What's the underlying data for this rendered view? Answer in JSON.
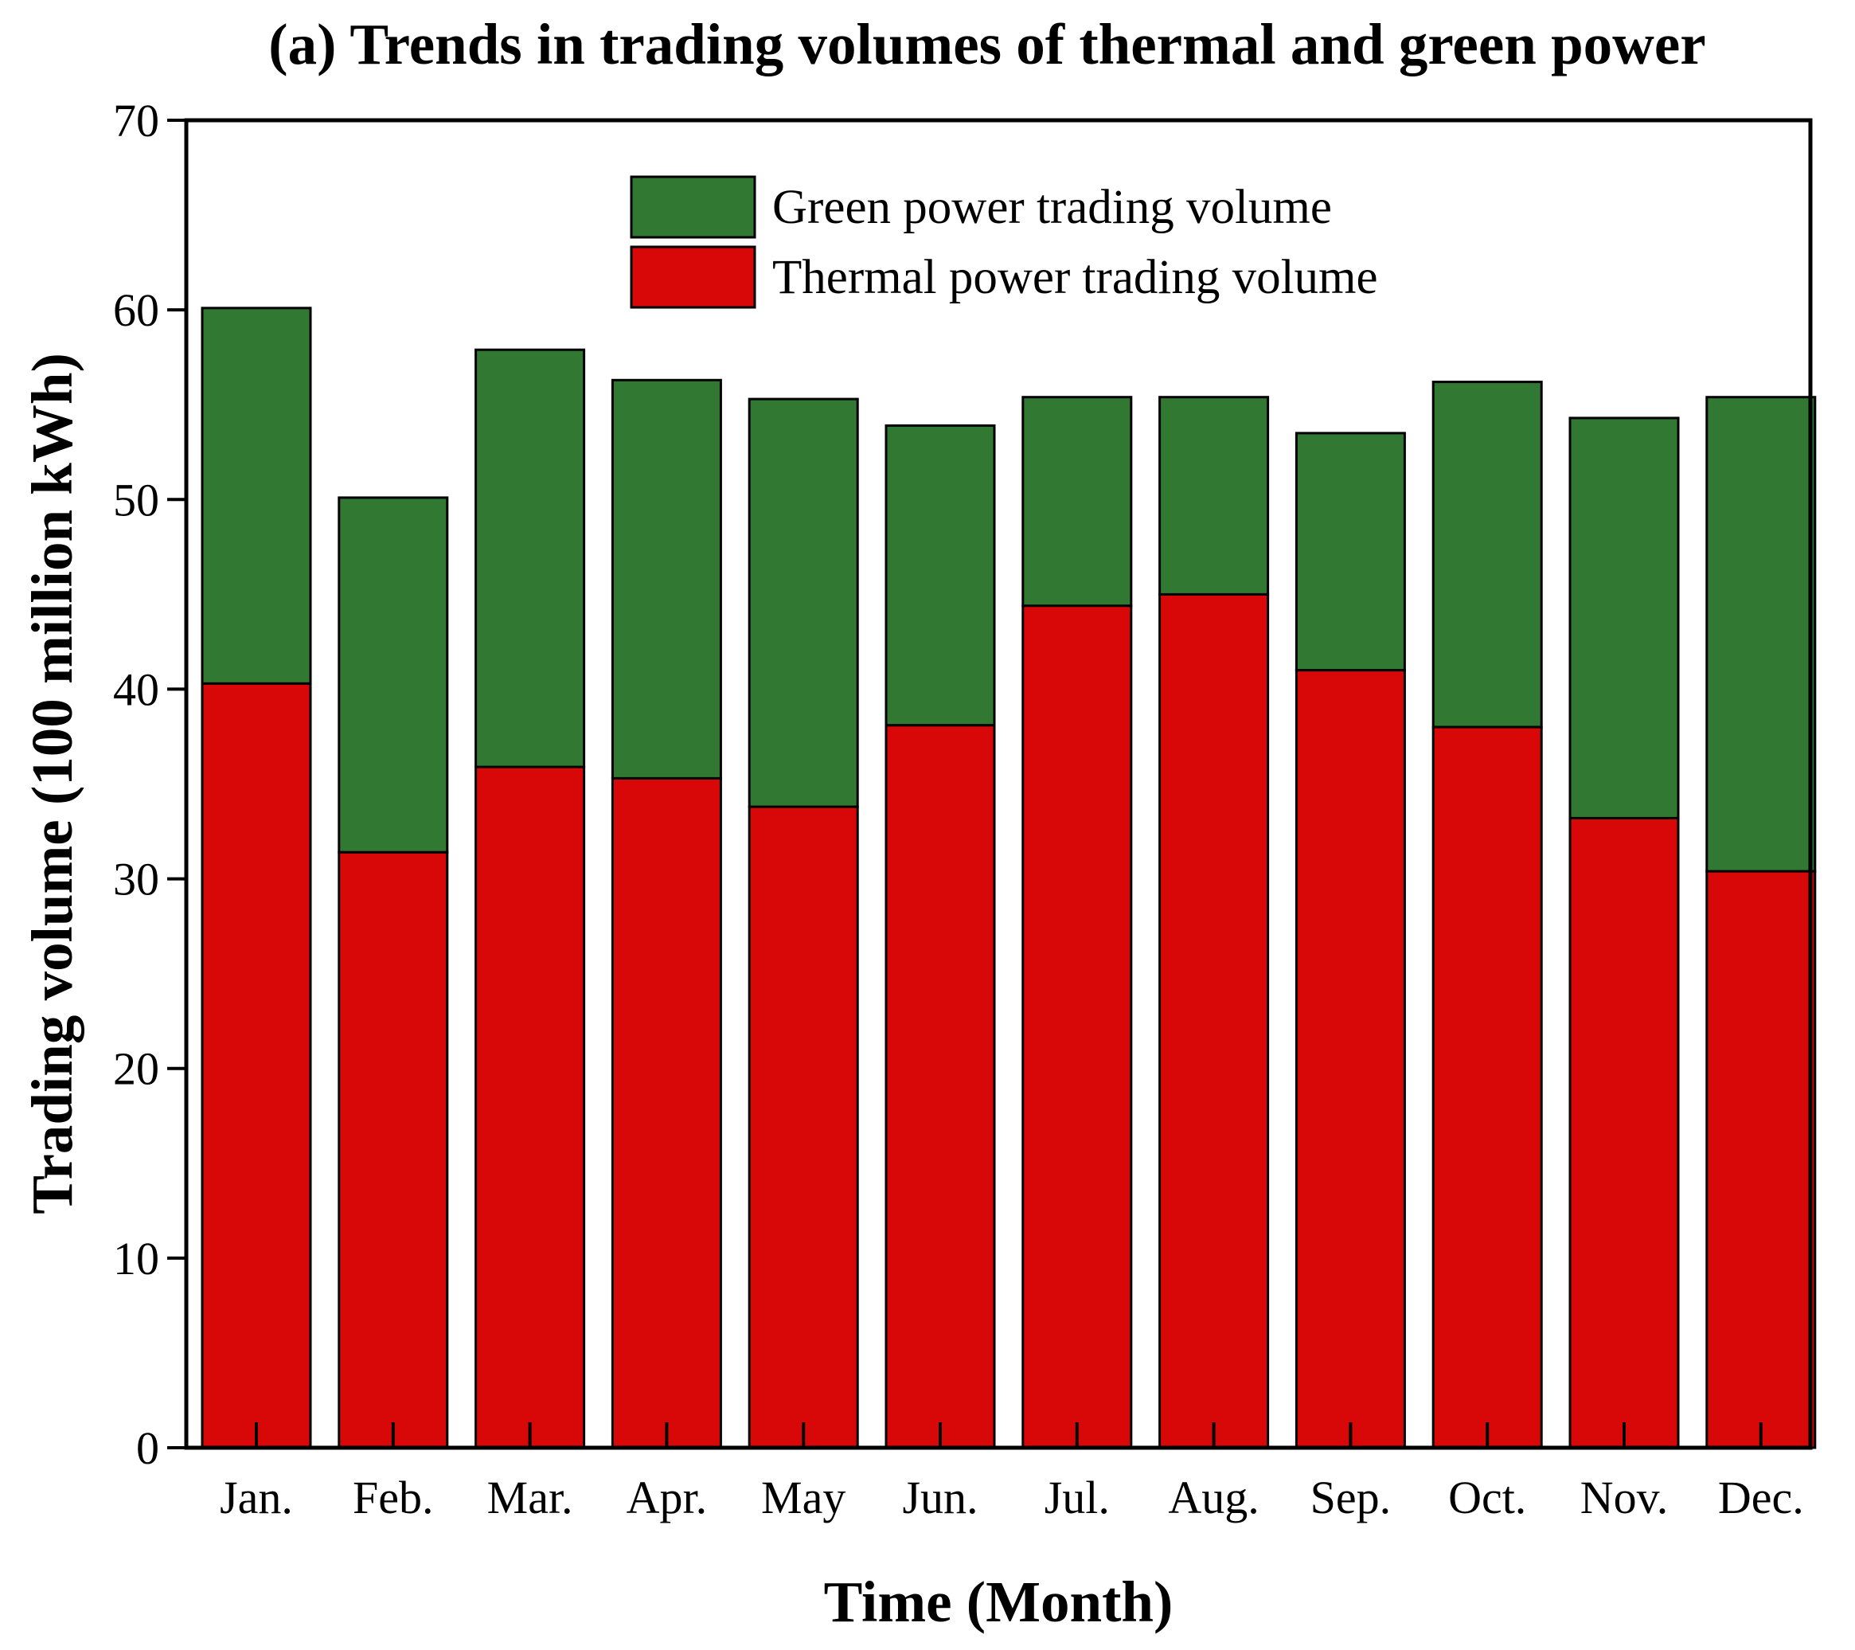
{
  "chart_data": {
    "type": "bar",
    "stacked": true,
    "title": "(a) Trends in trading volumes of thermal and green power",
    "xlabel": "Time (Month)",
    "ylabel": "Trading volume (100 million kWh)",
    "ylim": [
      0,
      70
    ],
    "yticks": [
      0,
      10,
      20,
      30,
      40,
      50,
      60,
      70
    ],
    "categories": [
      "Jan.",
      "Feb.",
      "Mar.",
      "Apr.",
      "May",
      "Jun.",
      "Jul.",
      "Aug.",
      "Sep.",
      "Oct.",
      "Nov.",
      "Dec."
    ],
    "series": [
      {
        "name": "Thermal power trading volume",
        "color": "#d90808",
        "values": [
          40.3,
          31.4,
          35.9,
          35.3,
          33.8,
          38.1,
          44.4,
          45.0,
          41.0,
          38.0,
          33.2,
          30.4
        ]
      },
      {
        "name": "Green power trading volume",
        "color": "#317832",
        "values": [
          19.8,
          18.7,
          22.0,
          21.0,
          21.5,
          15.8,
          11.0,
          10.4,
          12.5,
          18.2,
          21.1,
          25.0
        ]
      }
    ],
    "legend": {
      "position": "top-center",
      "order": [
        "Green power trading volume",
        "Thermal power trading volume"
      ]
    },
    "grid": false
  }
}
